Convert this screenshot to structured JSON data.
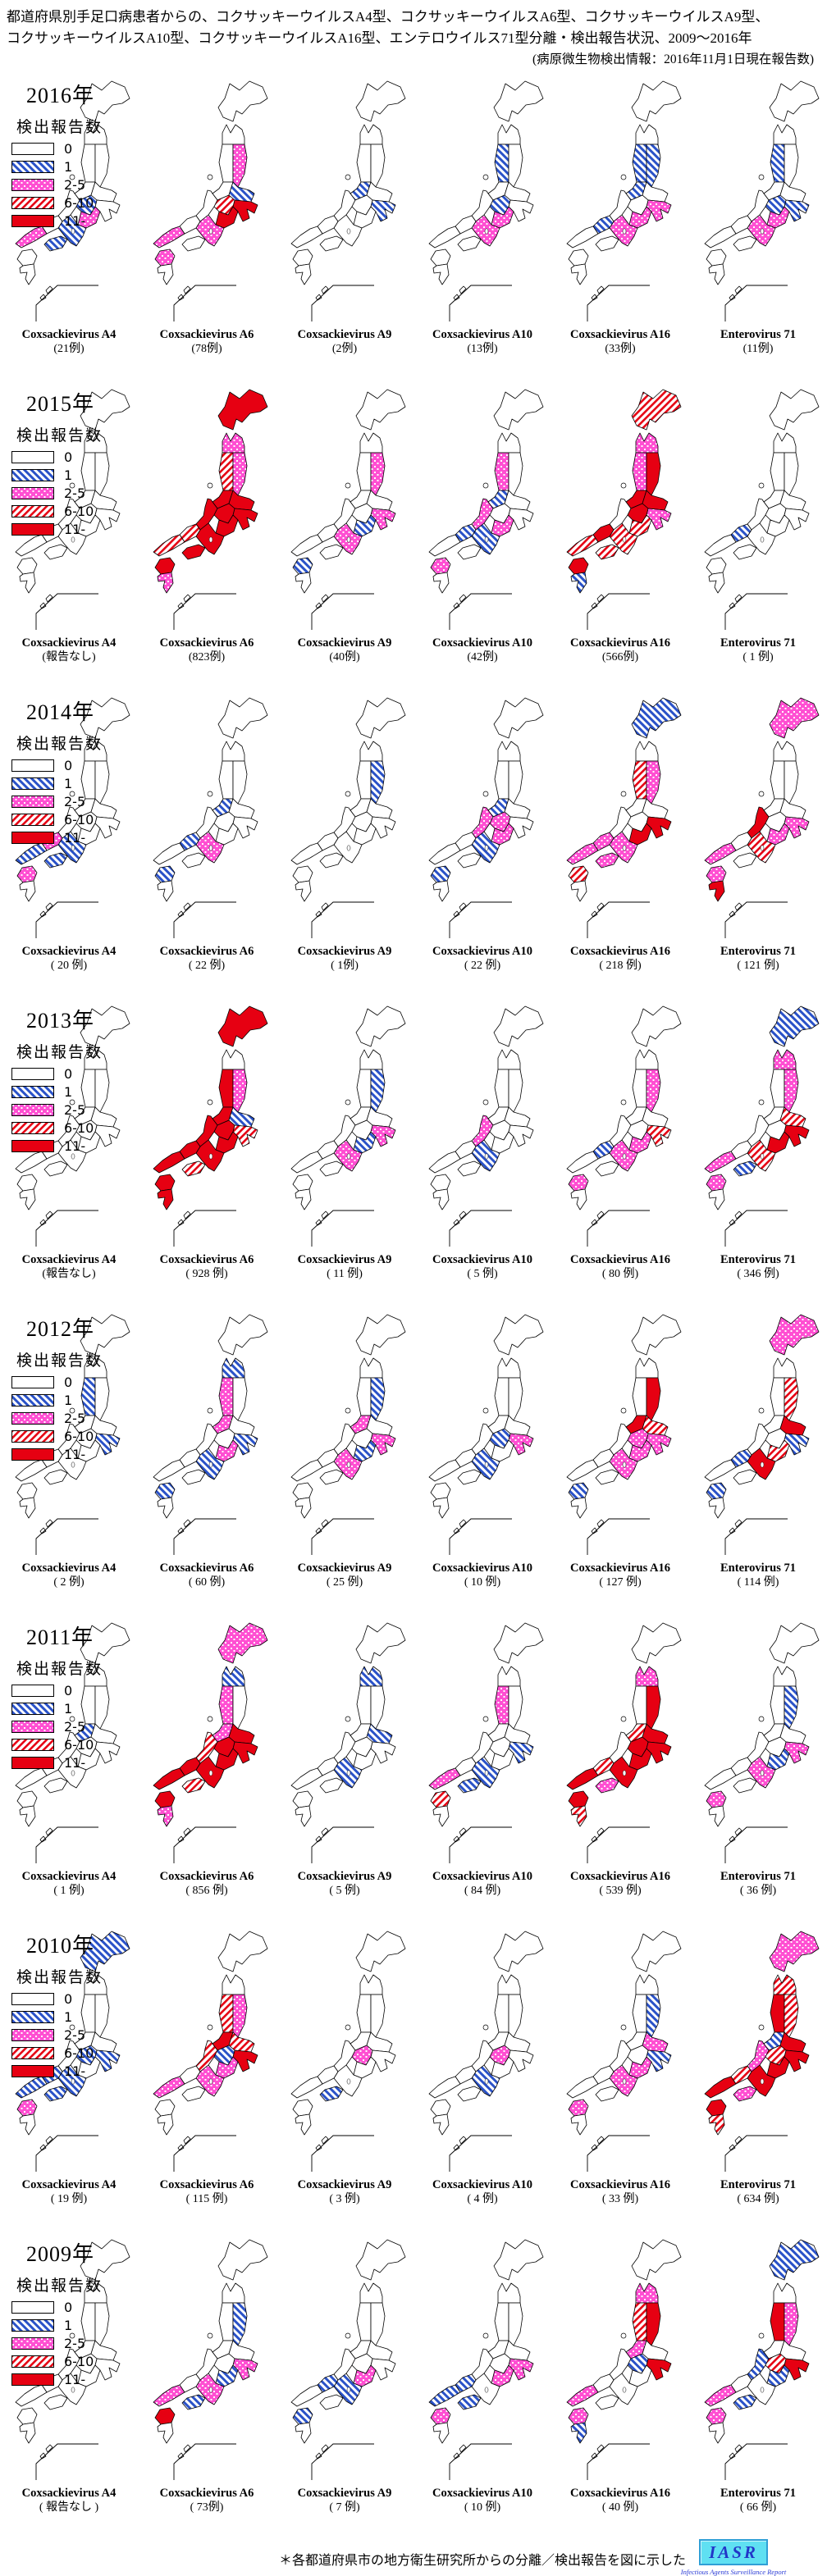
{
  "title": {
    "line1": "都道府県別手足口病患者からの、コクサッキーウイルスA4型、コクサッキーウイルスA6型、コクサッキーウイルスA9型、",
    "line2": "コクサッキーウイルスA10型、コクサッキーウイルスA16型、エンテロウイルス71型分離・検出報告状況、2009〜2016年",
    "line3": "(病原微生物検出情報：2016年11月1日現在報告数)"
  },
  "legend": {
    "title": "検出報告数",
    "items": [
      {
        "label": "0",
        "category": "0"
      },
      {
        "label": "1",
        "category": "1"
      },
      {
        "label": "2-5",
        "category": "2-5"
      },
      {
        "label": "6-10",
        "category": "6-10"
      },
      {
        "label": "11-",
        "category": "11-"
      }
    ]
  },
  "colors": {
    "blue": "#2a52c8",
    "magenta": "#ff4fd2",
    "red": "#e60012",
    "outline": "#000000",
    "logo_bg": "#5fe0f2",
    "logo_text": "#2236c8"
  },
  "footer": {
    "note": "＊各都道府県市の地方衛生研究所からの分離／検出報告を図に示した",
    "logo_text": "IASR",
    "logo_caption": "Infectious Agents Surveillance Report"
  },
  "rows": [
    {
      "year": "2016年",
      "maps": [
        {
          "virus": "Coxsackievirus A4",
          "count": "(21例)",
          "regions": {
            "chubu": "1",
            "tokai": "2-5",
            "kansai": "1",
            "chugoku_w": "2-5",
            "shikoku": "1"
          }
        },
        {
          "virus": "Coxsackievirus A6",
          "count": "(78例)",
          "regions": {
            "tohoku_e": "2-5",
            "kanto_n": "1",
            "kanto_s": "11-",
            "chubu": "6-10",
            "tokai": "11-",
            "kansai": "2-5",
            "chugoku_w": "2-5",
            "kyushu_n": "2-5"
          }
        },
        {
          "virus": "Coxsackievirus A9",
          "count": "(2例)",
          "regions": {
            "niigata": "1",
            "kanto_s": "1"
          }
        },
        {
          "virus": "Coxsackievirus A10",
          "count": "(13例)",
          "regions": {
            "tohoku_w": "1",
            "chubu": "1",
            "tokai": "2-5",
            "kansai": "2-5"
          }
        },
        {
          "virus": "Coxsackievirus A16",
          "count": "(33例)",
          "regions": {
            "tohoku_w": "1",
            "tohoku_e": "1",
            "niigata": "1",
            "kanto_s": "2-5",
            "tokai": "2-5",
            "kansai": "2-5",
            "chugoku_e": "1"
          }
        },
        {
          "virus": "Enterovirus 71",
          "count": "(11例)",
          "regions": {
            "tohoku_w": "1",
            "tokai": "2-5",
            "chubu": "1",
            "kanto_s": "1",
            "kansai": "2-5"
          }
        }
      ]
    },
    {
      "year": "2015年",
      "maps": [
        {
          "virus": "Coxsackievirus A4",
          "count": "(報告なし)",
          "regions": {}
        },
        {
          "virus": "Coxsackievirus A6",
          "count": "(823例)",
          "regions": {
            "hokkaido": "11-",
            "aomori": "2-5",
            "tohoku_w": "6-10",
            "tohoku_e": "2-5",
            "niigata": "11-",
            "hokuriku": "11-",
            "kanto_n": "11-",
            "kanto_s": "11-",
            "chubu": "11-",
            "tokai": "11-",
            "kansai": "11-",
            "chugoku_e": "6-10",
            "chugoku_w": "6-10",
            "shikoku": "11-",
            "kyushu_n": "11-",
            "kyushu_s": "2-5"
          }
        },
        {
          "virus": "Coxsackievirus A9",
          "count": "(40例)",
          "regions": {
            "tohoku_e": "2-5",
            "kanto_s": "2-5",
            "tokai": "1",
            "kansai": "2-5",
            "kyushu_n": "1"
          }
        },
        {
          "virus": "Coxsackievirus A10",
          "count": "(42例)",
          "regions": {
            "tohoku_w": "2-5",
            "niigata": "1",
            "hokuriku": "2-5",
            "tokai": "2-5",
            "kansai": "1",
            "chugoku_e": "1",
            "kyushu_n": "2-5"
          }
        },
        {
          "virus": "Coxsackievirus A16",
          "count": "(566例)",
          "regions": {
            "hokkaido": "6-10",
            "aomori": "2-5",
            "tohoku_w": "2-5",
            "tohoku_e": "11-",
            "niigata": "11-",
            "kanto_n": "11-",
            "kanto_s": "2-5",
            "chubu": "11-",
            "tokai": "6-10",
            "kansai": "6-10",
            "chugoku_e": "11-",
            "chugoku_w": "6-10",
            "shikoku": "6-10",
            "kyushu_n": "11-",
            "kyushu_s": "1"
          }
        },
        {
          "virus": "Enterovirus 71",
          "count": "( 1 例)",
          "regions": {
            "chugoku_e": "1"
          }
        }
      ]
    },
    {
      "year": "2014年",
      "maps": [
        {
          "virus": "Coxsackievirus A4",
          "count": "( 20 例)",
          "regions": {
            "kansai": "1",
            "chugoku_e": "2-5",
            "chugoku_w": "1",
            "shikoku": "1",
            "kyushu_n": "2-5"
          }
        },
        {
          "virus": "Coxsackievirus A6",
          "count": "( 22 例)",
          "regions": {
            "niigata": "1",
            "kansai": "2-5",
            "chugoku_e": "1",
            "kyushu_n": "1"
          }
        },
        {
          "virus": "Coxsackievirus A9",
          "count": "( 1例)",
          "regions": {
            "tohoku_e": "1"
          }
        },
        {
          "virus": "Coxsackievirus A10",
          "count": "( 22 例)",
          "regions": {
            "niigata": "1",
            "hokuriku": "2-5",
            "chubu": "2-5",
            "tokai": "2-5",
            "kansai": "1",
            "kyushu_n": "1"
          }
        },
        {
          "virus": "Coxsackievirus A16",
          "count": "( 218 例)",
          "regions": {
            "hokkaido": "1",
            "tohoku_w": "6-10",
            "tohoku_e": "2-5",
            "kanto_s": "11-",
            "tokai": "11-",
            "kansai": "2-5",
            "chugoku_e": "2-5",
            "chugoku_w": "2-5",
            "shikoku": "2-5",
            "kyushu_n": "6-10"
          }
        },
        {
          "virus": "Enterovirus 71",
          "count": "( 121 例)",
          "regions": {
            "hokkaido": "2-5",
            "hokuriku": "11-",
            "kanto_s": "2-5",
            "tokai": "2-5",
            "kansai": "6-10",
            "chugoku_w": "2-5",
            "kyushu_n": "2-5",
            "kyushu_s": "11-"
          }
        }
      ]
    },
    {
      "year": "2013年",
      "maps": [
        {
          "virus": "Coxsackievirus A4",
          "count": "(報告なし)",
          "regions": {}
        },
        {
          "virus": "Coxsackievirus A6",
          "count": "( 928 例)",
          "regions": {
            "hokkaido": "11-",
            "tohoku_w": "11-",
            "tohoku_e": "2-5",
            "niigata": "11-",
            "hokuriku": "11-",
            "kanto_n": "1",
            "kanto_s": "6-10",
            "chubu": "11-",
            "tokai": "11-",
            "kansai": "11-",
            "chugoku_e": "11-",
            "chugoku_w": "11-",
            "shikoku": "6-10",
            "kyushu_n": "11-",
            "kyushu_s": "11-"
          }
        },
        {
          "virus": "Coxsackievirus A9",
          "count": "( 11 例)",
          "regions": {
            "tohoku_e": "1",
            "kanto_s": "2-5",
            "tokai": "1",
            "kansai": "2-5"
          }
        },
        {
          "virus": "Coxsackievirus A10",
          "count": "( 5 例)",
          "regions": {
            "hokuriku": "2-5",
            "kansai": "1"
          }
        },
        {
          "virus": "Coxsackievirus A16",
          "count": "( 80 例)",
          "regions": {
            "tohoku_e": "2-5",
            "kanto_s": "6-10",
            "tokai": "2-5",
            "kansai": "2-5",
            "chugoku_e": "1",
            "kyushu_n": "2-5"
          }
        },
        {
          "virus": "Enterovirus 71",
          "count": "( 346 例)",
          "regions": {
            "hokkaido": "1",
            "aomori": "2-5",
            "tohoku_e": "2-5",
            "kanto_n": "6-10",
            "kanto_s": "11-",
            "tokai": "11-",
            "kansai": "6-10",
            "chugoku_w": "2-5",
            "shikoku": "1",
            "kyushu_n": "2-5"
          }
        }
      ]
    },
    {
      "year": "2012年",
      "maps": [
        {
          "virus": "Coxsackievirus A4",
          "count": "( 2 例)",
          "regions": {
            "tohoku_w": "1",
            "kanto_s": "1"
          }
        },
        {
          "virus": "Coxsackievirus A6",
          "count": "( 60 例)",
          "regions": {
            "aomori": "1",
            "tohoku_w": "2-5",
            "niigata": "2-5",
            "kanto_s": "1",
            "tokai": "2-5",
            "kansai": "1",
            "kyushu_n": "1"
          }
        },
        {
          "virus": "Coxsackievirus A9",
          "count": "( 25 例)",
          "regions": {
            "tohoku_e": "1",
            "niigata": "2-5",
            "kanto_s": "2-5",
            "tokai": "1",
            "kansai": "2-5"
          }
        },
        {
          "virus": "Coxsackievirus A10",
          "count": "( 10 例)",
          "regions": {
            "kanto_s": "2-5",
            "chubu": "1",
            "kansai": "1"
          }
        },
        {
          "virus": "Coxsackievirus A16",
          "count": "( 127 例)",
          "regions": {
            "tohoku_e": "11-",
            "niigata": "11-",
            "kanto_n": "6-10",
            "kanto_s": "2-5",
            "chubu": "2-5",
            "tokai": "2-5",
            "kansai": "2-5",
            "kyushu_n": "1"
          }
        },
        {
          "virus": "Enterovirus 71",
          "count": "( 114 例)",
          "regions": {
            "hokkaido": "2-5",
            "tohoku_e": "6-10",
            "kanto_n": "11-",
            "kanto_s": "1",
            "tokai": "6-10",
            "kansai": "11-",
            "chugoku_e": "1",
            "kyushu_n": "1"
          }
        }
      ]
    },
    {
      "year": "2011年",
      "maps": [
        {
          "virus": "Coxsackievirus A4",
          "count": "( 1 例)",
          "regions": {
            "niigata": "1"
          }
        },
        {
          "virus": "Coxsackievirus A6",
          "count": "( 856 例)",
          "regions": {
            "hokkaido": "2-5",
            "aomori": "1",
            "tohoku_w": "2-5",
            "niigata": "2-5",
            "hokuriku": "6-10",
            "kanto_n": "11-",
            "kanto_s": "11-",
            "chubu": "11-",
            "tokai": "11-",
            "kansai": "11-",
            "chugoku_e": "11-",
            "chugoku_w": "11-",
            "shikoku": "6-10",
            "kyushu_n": "11-",
            "kyushu_s": "2-5"
          }
        },
        {
          "virus": "Coxsackievirus A9",
          "count": "( 5 例)",
          "regions": {
            "aomori": "1",
            "kanto_n": "1",
            "kansai": "1"
          }
        },
        {
          "virus": "Coxsackievirus A10",
          "count": "( 84 例)",
          "regions": {
            "tohoku_w": "2-5",
            "kanto_s": "1",
            "kansai": "1",
            "chugoku_w": "2-5",
            "shikoku": "1",
            "kyushu_n": "6-10"
          }
        },
        {
          "virus": "Coxsackievirus A16",
          "count": "( 539 例)",
          "regions": {
            "aomori": "2-5",
            "tohoku_e": "11-",
            "niigata": "6-10",
            "kanto_n": "11-",
            "kanto_s": "11-",
            "chubu": "11-",
            "tokai": "11-",
            "kansai": "11-",
            "chugoku_e": "6-10",
            "chugoku_w": "11-",
            "shikoku": "2-5",
            "kyushu_n": "11-",
            "kyushu_s": "6-10"
          }
        },
        {
          "virus": "Enterovirus 71",
          "count": "( 36 例)",
          "regions": {
            "tohoku_e": "1",
            "kanto_s": "2-5",
            "tokai": "1",
            "kansai": "2-5",
            "kyushu_n": "2-5"
          }
        }
      ]
    },
    {
      "year": "2010年",
      "maps": [
        {
          "virus": "Coxsackievirus A4",
          "count": "( 19 例)",
          "regions": {
            "hokkaido": "1",
            "chubu": "1",
            "kanto_s": "1",
            "kansai": "1",
            "chugoku_e": "1",
            "chugoku_w": "1",
            "shikoku": "1",
            "kyushu_n": "2-5"
          }
        },
        {
          "virus": "Coxsackievirus A6",
          "count": "( 115 例)",
          "regions": {
            "tohoku_w": "6-10",
            "tohoku_e": "2-5",
            "niigata": "11-",
            "hokuriku": "6-10",
            "chubu": "1",
            "kanto_n": "6-10",
            "kanto_s": "11-",
            "tokai": "2-5",
            "kansai": "2-5",
            "chugoku_w": "2-5"
          }
        },
        {
          "virus": "Coxsackievirus A9",
          "count": "( 3 例)",
          "regions": {
            "chubu": "2-5",
            "shikoku": "1"
          }
        },
        {
          "virus": "Coxsackievirus A10",
          "count": "( 4 例)",
          "regions": {
            "chubu": "2-5",
            "kansai": "1"
          }
        },
        {
          "virus": "Coxsackievirus A16",
          "count": "( 33 例)",
          "regions": {
            "tohoku_e": "1",
            "kanto_n": "2-5",
            "kanto_s": "1",
            "tokai": "2-5",
            "kansai": "2-5",
            "kyushu_n": "2-5"
          }
        },
        {
          "virus": "Enterovirus 71",
          "count": "( 634 例)",
          "regions": {
            "hokkaido": "2-5",
            "aomori": "6-10",
            "tohoku_w": "11-",
            "tohoku_e": "6-10",
            "niigata": "1",
            "hokuriku": "2-5",
            "kanto_n": "11-",
            "kanto_s": "11-",
            "chubu": "6-10",
            "tokai": "11-",
            "kansai": "11-",
            "chugoku_e": "6-10",
            "chugoku_w": "11-",
            "shikoku": "2-5",
            "kyushu_n": "11-",
            "kyushu_s": "6-10"
          }
        }
      ]
    },
    {
      "year": "2009年",
      "maps": [
        {
          "virus": "Coxsackievirus A4",
          "count": "( 報告なし )",
          "regions": {}
        },
        {
          "virus": "Coxsackievirus A6",
          "count": "( 73例)",
          "regions": {
            "tohoku_e": "1",
            "kanto_s": "2-5",
            "tokai": "1",
            "kansai": "2-5",
            "chugoku_w": "2-5",
            "shikoku": "1",
            "kyushu_n": "11-"
          }
        },
        {
          "virus": "Coxsackievirus A9",
          "count": "( 7 例)",
          "regions": {
            "tokai": "2-5",
            "kansai": "1",
            "chugoku_e": "1",
            "kyushu_n": "1"
          }
        },
        {
          "virus": "Coxsackievirus A10",
          "count": "( 10 例)",
          "regions": {
            "kanto_s": "2-5",
            "tokai": "2-5",
            "chugoku_e": "1",
            "chugoku_w": "1",
            "shikoku": "1",
            "kyushu_n": "2-5"
          }
        },
        {
          "virus": "Coxsackievirus A16",
          "count": "( 40 例)",
          "regions": {
            "aomori": "2-5",
            "tohoku_w": "6-10",
            "tohoku_e": "11-",
            "niigata": "2-5",
            "chubu": "1",
            "kanto_s": "11-",
            "chugoku_w": "2-5",
            "kyushu_n": "2-5",
            "kyushu_s": "1"
          }
        },
        {
          "virus": "Enterovirus 71",
          "count": "( 66 例)",
          "regions": {
            "hokkaido": "1",
            "tohoku_w": "11-",
            "tohoku_e": "2-5",
            "hokuriku": "1",
            "chubu": "6-10",
            "kanto_s": "11-",
            "tokai": "1",
            "chugoku_w": "2-5",
            "shikoku": "1",
            "kyushu_n": "2-5"
          }
        }
      ]
    }
  ],
  "chart_data": {
    "type": "heatmap",
    "subtype": "choropleth-small-multiples",
    "title": "都道府県別手足口病患者からのエンテロウイルス分離・検出報告状況、2009〜2016年",
    "source_note": "(病原微生物検出情報：2016年11月1日現在報告数)",
    "legend_bins": [
      "0",
      "1",
      "2-5",
      "6-10",
      "11-"
    ],
    "legend_title": "検出報告数",
    "years": [
      2016,
      2015,
      2014,
      2013,
      2012,
      2011,
      2010,
      2009
    ],
    "series": [
      {
        "name": "Coxsackievirus A4",
        "values": [
          21,
          null,
          20,
          null,
          2,
          1,
          19,
          null
        ],
        "note": "null = 報告なし"
      },
      {
        "name": "Coxsackievirus A6",
        "values": [
          78,
          823,
          22,
          928,
          60,
          856,
          115,
          73
        ]
      },
      {
        "name": "Coxsackievirus A9",
        "values": [
          2,
          40,
          1,
          11,
          25,
          5,
          3,
          7
        ]
      },
      {
        "name": "Coxsackievirus A10",
        "values": [
          13,
          42,
          22,
          5,
          10,
          84,
          4,
          10
        ]
      },
      {
        "name": "Coxsackievirus A16",
        "values": [
          33,
          566,
          218,
          80,
          127,
          539,
          33,
          40
        ]
      },
      {
        "name": "Enterovirus 71",
        "values": [
          11,
          1,
          121,
          346,
          114,
          36,
          634,
          66
        ]
      }
    ],
    "layout": "8 rows (years, newest first) × 6 columns (virus types); each cell is a Japan prefecture choropleth with 5 hatch-pattern bins"
  }
}
